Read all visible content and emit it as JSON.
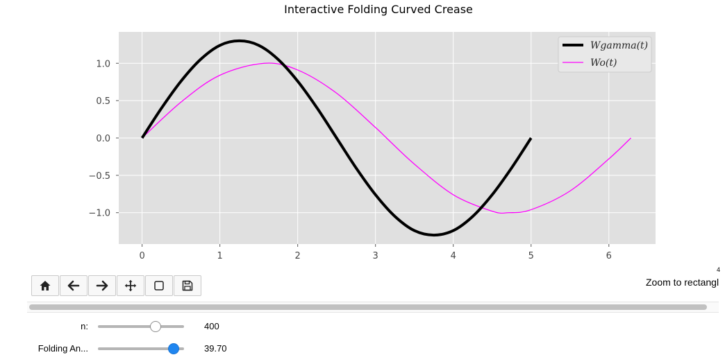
{
  "window": {
    "status_text": "Zoom to rectangl",
    "status_corner": "4"
  },
  "toolbar": {
    "buttons": [
      {
        "name": "home-button",
        "icon": "home-icon"
      },
      {
        "name": "back-button",
        "icon": "arrow-left-icon"
      },
      {
        "name": "forward-button",
        "icon": "arrow-right-icon"
      },
      {
        "name": "pan-button",
        "icon": "move-icon"
      },
      {
        "name": "zoom-button",
        "icon": "zoom-rectangle-icon"
      },
      {
        "name": "save-button",
        "icon": "save-icon"
      }
    ]
  },
  "sliders": [
    {
      "label": "n:",
      "value": "400",
      "fraction": 0.67,
      "thumb_color": "#ffffff"
    },
    {
      "label": "Folding An...",
      "value": "39.70",
      "fraction": 0.88,
      "thumb_color": "#1f86f0"
    }
  ],
  "chart_data": {
    "type": "line",
    "title": "Interactive Folding Curved Crease",
    "xlim": [
      -0.3,
      6.6
    ],
    "ylim": [
      -1.42,
      1.42
    ],
    "xticks": [
      0,
      1,
      2,
      3,
      4,
      5,
      6
    ],
    "yticks": [
      -1.0,
      -0.5,
      0.0,
      0.5,
      1.0
    ],
    "xtick_labels": [
      "0",
      "1",
      "2",
      "3",
      "4",
      "5",
      "6"
    ],
    "ytick_labels": [
      "−1.0",
      "−0.5",
      "0.0",
      "0.5",
      "1.0"
    ],
    "grid": true,
    "background": "#e0e0e0",
    "legend_position": "top-right",
    "series": [
      {
        "name": "Wgamma(t)",
        "color": "#000000",
        "line_width": "thick",
        "x": [
          0,
          0.25,
          0.5,
          0.75,
          1.0,
          1.25,
          1.5,
          1.75,
          2.0,
          2.25,
          2.5,
          2.75,
          3.0,
          3.25,
          3.5,
          3.75,
          4.0,
          4.25,
          4.5,
          4.75,
          5.0
        ],
        "y": [
          0.0,
          0.4,
          0.76,
          1.05,
          1.24,
          1.3,
          1.24,
          1.05,
          0.76,
          0.4,
          0.0,
          -0.4,
          -0.76,
          -1.05,
          -1.24,
          -1.3,
          -1.24,
          -1.05,
          -0.76,
          -0.4,
          0.0
        ]
      },
      {
        "name": "Wo(t)",
        "color": "#ff00ff",
        "line_width": "thin",
        "x": [
          0,
          0.5,
          1.0,
          1.5708,
          2.0,
          2.5,
          3.0,
          3.1416,
          3.5,
          4.0,
          4.5,
          4.7124,
          5.0,
          5.5,
          6.0,
          6.2832
        ],
        "y": [
          0.0,
          0.48,
          0.84,
          1.0,
          0.91,
          0.6,
          0.14,
          0.0,
          -0.35,
          -0.76,
          -0.98,
          -1.0,
          -0.96,
          -0.71,
          -0.28,
          0.0
        ]
      }
    ]
  }
}
